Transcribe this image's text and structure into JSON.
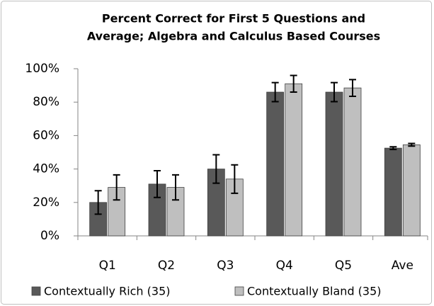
{
  "chart_data": {
    "type": "bar",
    "title": [
      "Percent Correct for First 5 Questions and",
      "Average; Algebra and Calculus Based Courses"
    ],
    "categories": [
      "Q1",
      "Q2",
      "Q3",
      "Q4",
      "Q5",
      "Ave"
    ],
    "series": [
      {
        "name": "Contextually Rich (35)",
        "color": "#595959",
        "values": [
          20,
          31,
          40,
          86,
          86,
          52.5
        ],
        "errors": [
          7,
          8,
          8.5,
          5.7,
          5.7,
          0.8
        ]
      },
      {
        "name": "Contextually Bland (35)",
        "color": "#bfbfbf",
        "values": [
          29,
          29,
          34,
          91,
          88.5,
          54.5
        ],
        "errors": [
          7.5,
          7.5,
          8.5,
          5,
          5,
          0.8
        ]
      }
    ],
    "ylim": [
      0,
      100
    ],
    "yticks": [
      {
        "value": 0,
        "label": "0%"
      },
      {
        "value": 20,
        "label": "20%"
      },
      {
        "value": 40,
        "label": "40%"
      },
      {
        "value": 60,
        "label": "60%"
      },
      {
        "value": 80,
        "label": "80%"
      },
      {
        "value": 100,
        "label": "100%"
      }
    ],
    "legend": "bottom"
  }
}
